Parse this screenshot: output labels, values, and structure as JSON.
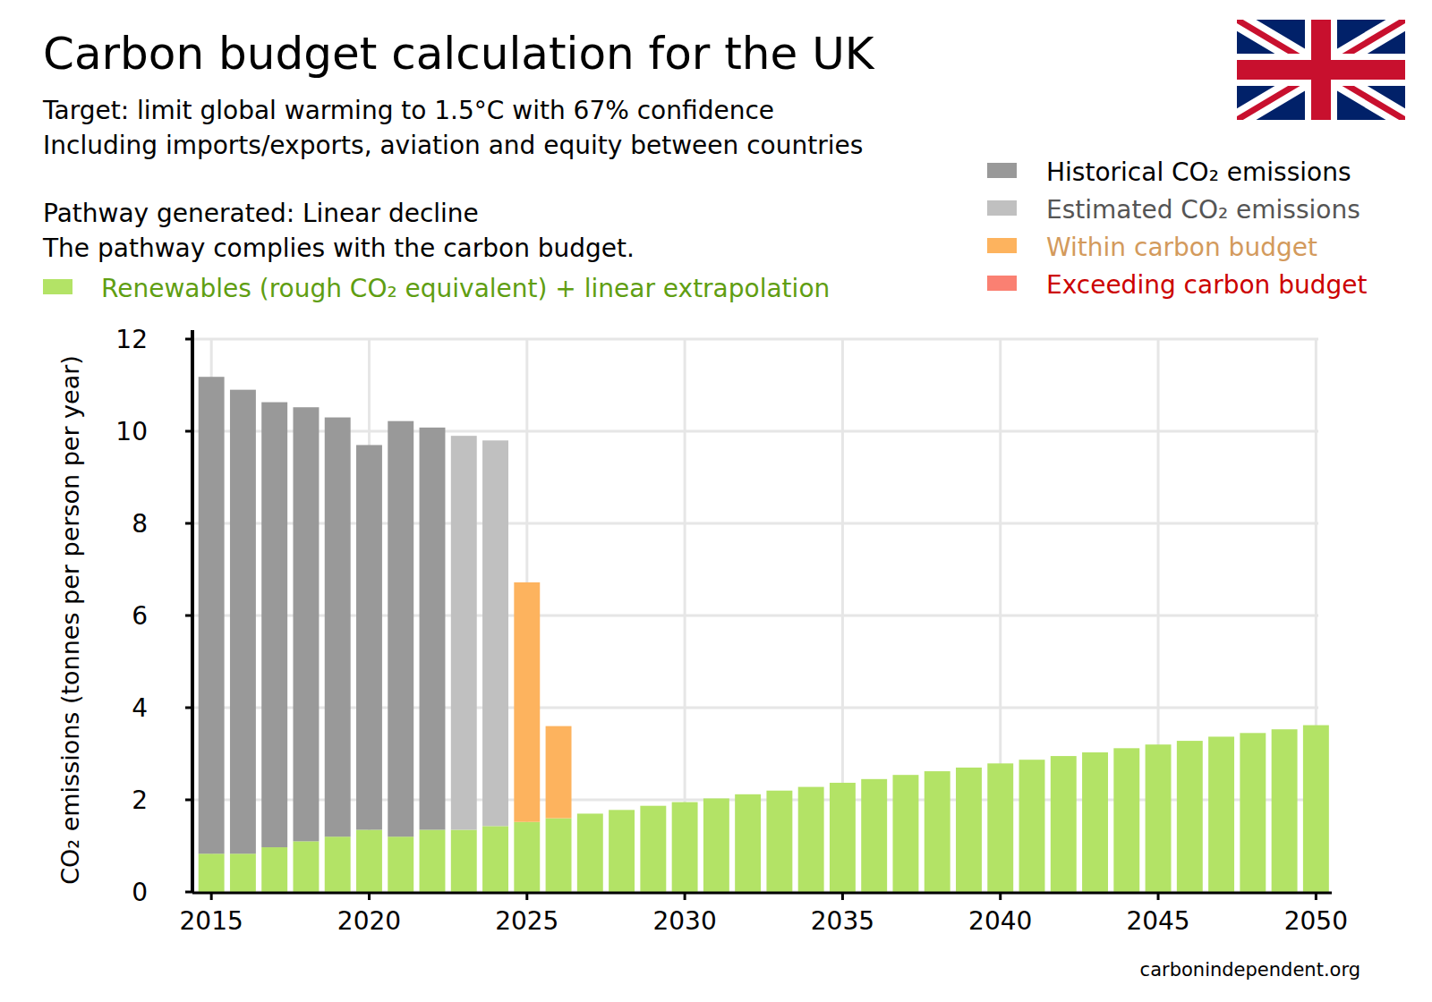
{
  "chart_data": {
    "type": "bar",
    "title": "Carbon budget calculation for the UK",
    "subtitle": [
      "Target: limit global warming to 1.5°C with 67% confidence",
      "Including imports/exports, aviation and equity between countries"
    ],
    "annotations": [
      "Pathway generated: Linear decline",
      "The pathway complies with the carbon budget."
    ],
    "y_label": "CO₂ emissions (tonnes per person per year)",
    "source": "carbonindependent.org",
    "stacked": true,
    "grid": true,
    "legend": "top-right",
    "x": [
      2015,
      2016,
      2017,
      2018,
      2019,
      2020,
      2021,
      2022,
      2023,
      2024,
      2025,
      2026,
      2027,
      2028,
      2029,
      2030,
      2031,
      2032,
      2033,
      2034,
      2035,
      2036,
      2037,
      2038,
      2039,
      2040,
      2041,
      2042,
      2043,
      2044,
      2045,
      2046,
      2047,
      2048,
      2049,
      2050
    ],
    "xlim": [
      2014.4,
      2050.5
    ],
    "xticks": [
      2015,
      2020,
      2025,
      2030,
      2035,
      2040,
      2045,
      2050
    ],
    "ylim": [
      0,
      12
    ],
    "yticks": [
      0,
      2,
      4,
      6,
      8,
      10,
      12
    ],
    "series": [
      {
        "name": "Renewables (rough CO₂ equivalent) + linear extrapolation",
        "color": "#b3e366",
        "values": [
          0.83,
          0.83,
          0.97,
          1.1,
          1.2,
          1.35,
          1.2,
          1.35,
          1.35,
          1.43,
          1.52,
          1.6,
          1.7,
          1.78,
          1.87,
          1.95,
          2.03,
          2.12,
          2.2,
          2.28,
          2.37,
          2.45,
          2.54,
          2.62,
          2.7,
          2.79,
          2.87,
          2.95,
          3.03,
          3.12,
          3.2,
          3.28,
          3.37,
          3.45,
          3.53,
          3.62
        ]
      },
      {
        "name": "Historical CO₂ emissions",
        "color": "#999999",
        "values": [
          10.35,
          10.07,
          9.66,
          9.42,
          9.1,
          8.35,
          9.02,
          8.73,
          null,
          null,
          null,
          null,
          null,
          null,
          null,
          null,
          null,
          null,
          null,
          null,
          null,
          null,
          null,
          null,
          null,
          null,
          null,
          null,
          null,
          null,
          null,
          null,
          null,
          null,
          null,
          null
        ]
      },
      {
        "name": "Estimated CO₂ emissions",
        "color": "#c0c0c0",
        "values": [
          null,
          null,
          null,
          null,
          null,
          null,
          null,
          null,
          8.55,
          8.37,
          null,
          null,
          null,
          null,
          null,
          null,
          null,
          null,
          null,
          null,
          null,
          null,
          null,
          null,
          null,
          null,
          null,
          null,
          null,
          null,
          null,
          null,
          null,
          null,
          null,
          null
        ]
      },
      {
        "name": "Within carbon budget",
        "color": "#fdb35e",
        "values": [
          null,
          null,
          null,
          null,
          null,
          null,
          null,
          null,
          null,
          null,
          5.2,
          2.0,
          null,
          null,
          null,
          null,
          null,
          null,
          null,
          null,
          null,
          null,
          null,
          null,
          null,
          null,
          null,
          null,
          null,
          null,
          null,
          null,
          null,
          null,
          null,
          null
        ]
      },
      {
        "name": "Exceeding carbon budget",
        "color": "#fa8072",
        "values": [
          null,
          null,
          null,
          null,
          null,
          null,
          null,
          null,
          null,
          null,
          null,
          null,
          null,
          null,
          null,
          null,
          null,
          null,
          null,
          null,
          null,
          null,
          null,
          null,
          null,
          null,
          null,
          null,
          null,
          null,
          null,
          null,
          null,
          null,
          null,
          null
        ]
      }
    ]
  }
}
